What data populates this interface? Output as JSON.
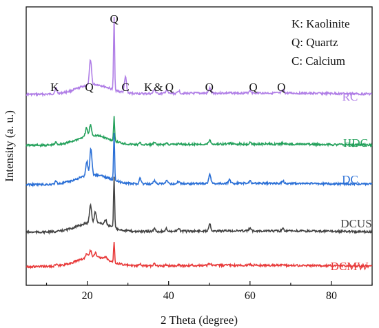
{
  "chart_data": {
    "type": "line",
    "xlabel": "2 Theta (degree)",
    "ylabel": "Intensity (a. u.)",
    "xlim": [
      5,
      90
    ],
    "xticks": [
      20,
      40,
      60,
      80
    ],
    "yticks_shown": false,
    "grid": false,
    "key_box": [
      "K: Kaolinite",
      "Q: Quartz",
      "C: Calcium"
    ],
    "annotations": [
      {
        "text": "K",
        "x": 12
      },
      {
        "text": "Q",
        "x": 20.5
      },
      {
        "text": "Q",
        "x": 26.6
      },
      {
        "text": "C",
        "x": 29.4
      },
      {
        "text": "K",
        "x": 35
      },
      {
        "text": "&",
        "x": 37.5
      },
      {
        "text": "Q",
        "x": 40.2
      },
      {
        "text": "Q",
        "x": 50
      },
      {
        "text": "Q",
        "x": 60.8
      },
      {
        "text": "Q",
        "x": 67.7
      }
    ],
    "series": [
      {
        "name": "RC",
        "color": "#b07ee6",
        "peaks": [
          [
            12.3,
            0.08
          ],
          [
            20.8,
            0.35
          ],
          [
            26.6,
            1.0
          ],
          [
            29.4,
            0.22
          ],
          [
            36.5,
            0.06
          ],
          [
            39.5,
            0.05
          ],
          [
            42.5,
            0.04
          ],
          [
            50.1,
            0.07
          ],
          [
            60.0,
            0.04
          ],
          [
            68.1,
            0.04
          ]
        ]
      },
      {
        "name": "HDC",
        "color": "#22a05a",
        "peaks": [
          [
            12.3,
            0.1
          ],
          [
            19.8,
            0.35
          ],
          [
            20.8,
            0.45
          ],
          [
            26.6,
            1.0
          ],
          [
            33.0,
            0.06
          ],
          [
            36.5,
            0.08
          ],
          [
            39.5,
            0.06
          ],
          [
            42.5,
            0.05
          ],
          [
            50.1,
            0.17
          ],
          [
            55.0,
            0.05
          ],
          [
            60.0,
            0.05
          ],
          [
            68.1,
            0.04
          ]
        ]
      },
      {
        "name": "DC",
        "color": "#2a6fd6",
        "peaks": [
          [
            12.3,
            0.05
          ],
          [
            19.9,
            0.3
          ],
          [
            20.9,
            0.55
          ],
          [
            26.6,
            1.0
          ],
          [
            33.0,
            0.12
          ],
          [
            36.5,
            0.08
          ],
          [
            39.5,
            0.06
          ],
          [
            42.5,
            0.05
          ],
          [
            50.1,
            0.2
          ],
          [
            55.0,
            0.07
          ],
          [
            60.0,
            0.05
          ],
          [
            68.1,
            0.05
          ]
        ]
      },
      {
        "name": "DCUS",
        "color": "#444444",
        "peaks": [
          [
            20.8,
            0.35
          ],
          [
            22.0,
            0.2
          ],
          [
            24.5,
            0.1
          ],
          [
            26.6,
            1.0
          ],
          [
            36.5,
            0.06
          ],
          [
            39.5,
            0.05
          ],
          [
            42.5,
            0.05
          ],
          [
            50.1,
            0.15
          ],
          [
            60.0,
            0.05
          ],
          [
            68.1,
            0.04
          ]
        ]
      },
      {
        "name": "DCMW",
        "color": "#e83a3a",
        "peaks": [
          [
            12.3,
            0.08
          ],
          [
            19.9,
            0.2
          ],
          [
            20.8,
            0.3
          ],
          [
            22.0,
            0.2
          ],
          [
            24.5,
            0.12
          ],
          [
            26.6,
            1.0
          ],
          [
            33.0,
            0.08
          ],
          [
            36.5,
            0.1
          ],
          [
            39.5,
            0.05
          ],
          [
            42.5,
            0.05
          ],
          [
            45.5,
            0.04
          ],
          [
            50.1,
            0.12
          ],
          [
            60.0,
            0.05
          ],
          [
            68.1,
            0.04
          ]
        ]
      }
    ]
  }
}
